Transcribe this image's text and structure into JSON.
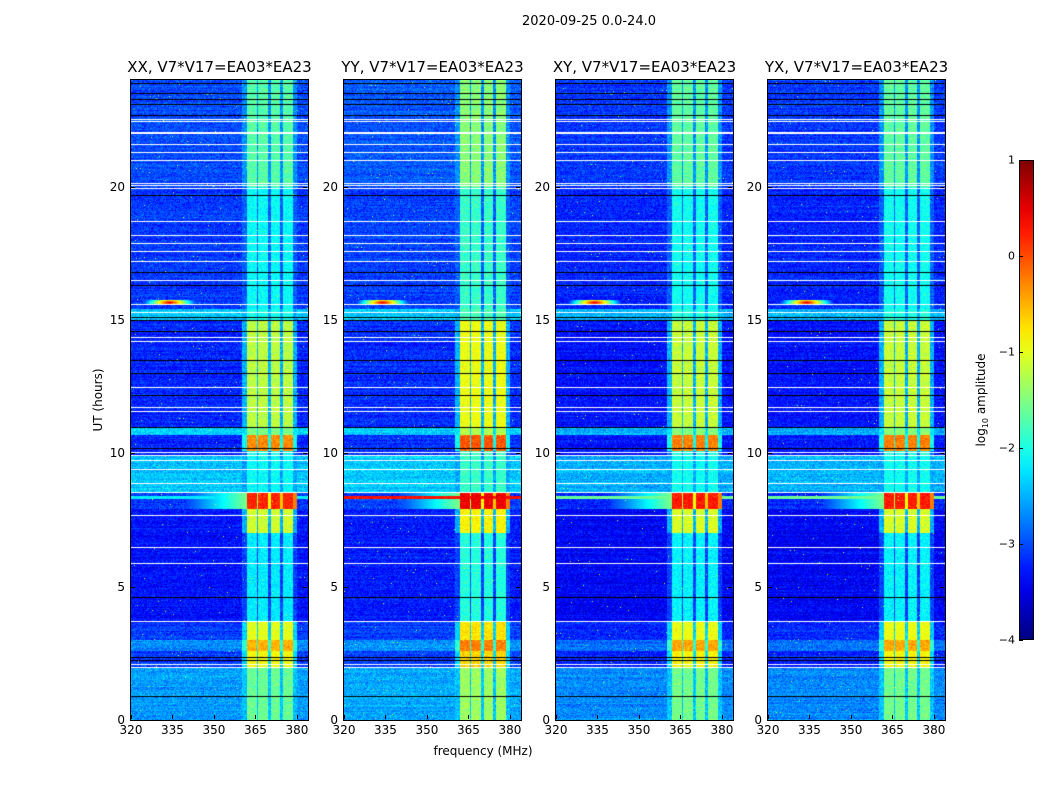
{
  "chart_data": {
    "type": "heatmap",
    "title": "2020-09-25 0.0-24.0",
    "xlabel": "frequency (MHz)",
    "ylabel": "UT (hours)",
    "xlim": [
      320,
      384
    ],
    "ylim": [
      0,
      24
    ],
    "xticks": [
      "320",
      "335",
      "350",
      "365",
      "380"
    ],
    "xtick_values": [
      320,
      335,
      350,
      365,
      380
    ],
    "yticks": [
      "0",
      "5",
      "10",
      "15",
      "20"
    ],
    "ytick_values": [
      0,
      5,
      10,
      15,
      20
    ],
    "colorbar": {
      "label_main": "log",
      "label_sub": "10",
      "label_rest": " amplitude",
      "range": [
        -4,
        1
      ],
      "ticks": [
        "1",
        "0",
        "−1",
        "−2",
        "−3",
        "−4"
      ],
      "tick_values": [
        1,
        0,
        -1,
        -2,
        -3,
        -4
      ],
      "colormap": "jet"
    },
    "panels": [
      {
        "title": "XX, V7*V17=EA03*EA23",
        "band_offset": 0,
        "bg_offset": 0,
        "rfi_line_level": -2.2
      },
      {
        "title": "YY, V7*V17=EA03*EA23",
        "band_offset": 0.25,
        "bg_offset": 0.05,
        "rfi_line_level": 0.3
      },
      {
        "title": "XY, V7*V17=EA03*EA23",
        "band_offset": 0.05,
        "bg_offset": -0.1,
        "rfi_line_level": -1.6
      },
      {
        "title": "YX, V7*V17=EA03*EA23",
        "band_offset": 0.05,
        "bg_offset": -0.1,
        "rfi_line_level": -1.6
      }
    ],
    "band_columns_mhz": [
      [
        362,
        365.5
      ],
      [
        366,
        369.5
      ],
      [
        370.5,
        374
      ],
      [
        375,
        378.5
      ]
    ],
    "time_segments": [
      {
        "t": [
          0,
          2.0
        ],
        "bg": -2.6,
        "band": -1.6
      },
      {
        "t": [
          2.0,
          2.6
        ],
        "bg": -3.1,
        "band": -0.9
      },
      {
        "t": [
          2.6,
          3.0
        ],
        "bg": -2.7,
        "band": -0.5
      },
      {
        "t": [
          3.0,
          3.7
        ],
        "bg": -3.1,
        "band": -1.0
      },
      {
        "t": [
          3.7,
          7.0
        ],
        "bg": -3.3,
        "band": -2.2
      },
      {
        "t": [
          7.0,
          7.9
        ],
        "bg": -3.3,
        "band": -1.1
      },
      {
        "t": [
          7.9,
          8.5
        ],
        "bg": -3.1,
        "band": 0.2
      },
      {
        "t": [
          8.5,
          9.9
        ],
        "bg": -2.4,
        "band": -2.1
      },
      {
        "t": [
          9.9,
          10.1
        ],
        "bg": -3.2,
        "band": -2.0
      },
      {
        "t": [
          10.1,
          10.7
        ],
        "bg": -3.2,
        "band": -0.3
      },
      {
        "t": [
          10.7,
          11.0
        ],
        "bg": -2.4,
        "band": -1.5
      },
      {
        "t": [
          11.0,
          15.0
        ],
        "bg": -3.2,
        "band": -1.2
      },
      {
        "t": [
          15.0,
          15.4
        ],
        "bg": -2.4,
        "band": -2.0
      },
      {
        "t": [
          15.4,
          20.0
        ],
        "bg": -3.1,
        "band": -2.1
      },
      {
        "t": [
          20.0,
          24.0
        ],
        "bg": -3.0,
        "band": -1.7
      }
    ],
    "rfi_spot": {
      "time_h": 15.65,
      "freq_mhz": 334,
      "level": 0.6
    },
    "flag_hours_white": [
      2.0,
      2.1,
      3.7,
      5.9,
      6.5,
      7.7,
      8.55,
      8.9,
      9.4,
      9.75,
      9.95,
      10.05,
      11.6,
      11.75,
      12.5,
      14.2,
      14.35,
      15.3,
      15.6,
      16.5,
      17.2,
      17.6,
      17.9,
      18.2,
      18.7,
      19.95,
      20.05,
      20.15,
      21.0,
      21.3,
      21.6,
      22.0,
      22.05,
      22.45,
      22.55
    ],
    "flag_hours_black": [
      0.9,
      2.25,
      2.35,
      4.6,
      10.2,
      11.0,
      12.2,
      13.0,
      13.5,
      14.6,
      15.0,
      15.1,
      16.3,
      16.8,
      19.7,
      22.7,
      23.1,
      23.3,
      23.5,
      23.9
    ]
  }
}
